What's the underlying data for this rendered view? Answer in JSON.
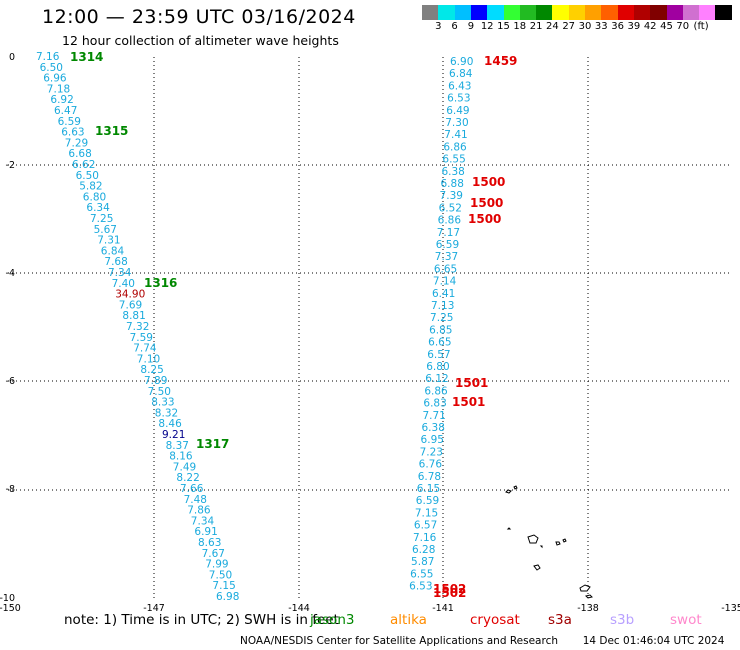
{
  "title": "12:00 — 23:59 UTC 03/16/2024",
  "subtitle": "12 hour collection of altimeter wave heights",
  "color_scale": {
    "colors": [
      "#808080",
      "#00e8e8",
      "#00bfff",
      "#0000ff",
      "#00dcff",
      "#33ff33",
      "#22bb22",
      "#008800",
      "#ffff00",
      "#ffd000",
      "#ffa000",
      "#ff6000",
      "#e00000",
      "#b00000",
      "#800000",
      "#a000a0",
      "#d070d0",
      "#ff80ff",
      "#000000"
    ],
    "labels": [
      "3",
      "6",
      "9",
      "12",
      "15",
      "18",
      "21",
      "24",
      "27",
      "30",
      "33",
      "36",
      "39",
      "42",
      "45",
      "70",
      "(ft)"
    ]
  },
  "axes": {
    "x_ticks": [
      "-150",
      "-147",
      "-144",
      "-141",
      "-138",
      "-135"
    ],
    "y_ticks": [
      "0",
      "-2",
      "-4",
      "-6",
      "-8",
      "-10"
    ]
  },
  "footer": {
    "note_prefix": "note:  1) Time is in UTC; 2) SWH is in feet",
    "satellites": [
      {
        "name": "jason3",
        "color": "#008800"
      },
      {
        "name": "altika",
        "color": "#ff8c00"
      },
      {
        "name": "cryosat",
        "color": "#e00000"
      },
      {
        "name": "s3a",
        "color": "#a00000"
      },
      {
        "name": "s3b",
        "color": "#b8a0ff"
      },
      {
        "name": "swot",
        "color": "#ff88cc"
      }
    ],
    "credit": "NOAA/NESDIS Center for Satellite Applications and Research",
    "timestamp": "14 Dec 01:46:04 UTC 2024"
  },
  "track_left": {
    "color": "#1aaadd",
    "values": [
      "7.16",
      "6.50",
      "6.96",
      "7.18",
      "6.92",
      "6.47",
      "6.59",
      "6.63",
      "7.29",
      "6.68",
      "6.62",
      "6.50",
      "5.82",
      "6.80",
      "6.34",
      "7.25",
      "5.67",
      "7.31",
      "6.84",
      "7.68",
      "7.34",
      "7.40",
      "34.90",
      "7.69",
      "8.81",
      "7.32",
      "7.59",
      "7.74",
      "7.10",
      "8.25",
      "7.89",
      "7.50",
      "8.33",
      "8.32",
      "8.46",
      "9.21",
      "8.37",
      "8.16",
      "7.49",
      "8.22",
      "7.66",
      "7.48",
      "7.86",
      "7.34",
      "6.91",
      "8.63",
      "7.67",
      "7.99",
      "7.50",
      "7.15",
      "6.98"
    ],
    "special": [
      {
        "index": 22,
        "color": "#b00000"
      },
      {
        "index": 35,
        "color": "#00008b"
      }
    ],
    "time_labels": [
      "1314",
      "1315",
      "1316",
      "1317"
    ],
    "time_color": "#008800"
  },
  "track_right": {
    "color": "#1aaadd",
    "values": [
      "6.90",
      "6.84",
      "6.43",
      "6.53",
      "6.49",
      "7.30",
      "7.41",
      "6.86",
      "6.55",
      "6.38",
      "6.88",
      "7.39",
      "6.52",
      "6.86",
      "7.17",
      "6.59",
      "7.37",
      "6.65",
      "7.14",
      "6.41",
      "7.13",
      "7.25",
      "6.85",
      "6.65",
      "6.57",
      "6.80",
      "6.12",
      "6.86",
      "6.83",
      "7.71",
      "6.38",
      "6.95",
      "7.23",
      "6.76",
      "6.78",
      "6.15",
      "6.59",
      "7.15",
      "6.57",
      "7.16",
      "6.28",
      "5.87",
      "6.55",
      "6.53"
    ],
    "time_labels": [
      "1459",
      "1500",
      "1500",
      "1500",
      "1501",
      "1501",
      "1502",
      "1502"
    ],
    "time_color": "#e00000"
  }
}
